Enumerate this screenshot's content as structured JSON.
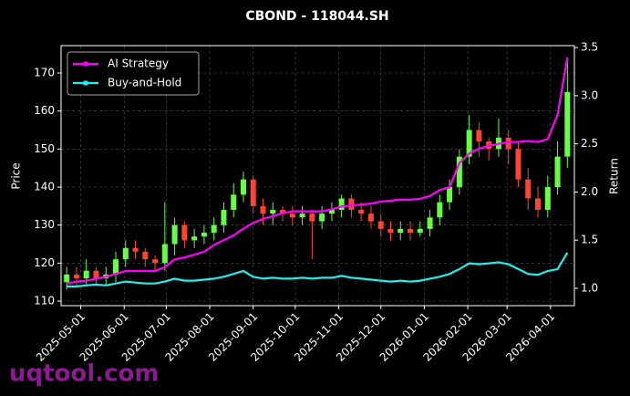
{
  "chart_data": {
    "type": "candlestick",
    "title": "CBOND - 118044.SH",
    "ylabel": "Price",
    "y2label": "Return",
    "watermark": "uqtool.com",
    "x": [
      "2025-04-21",
      "2025-04-28",
      "2025-05-05",
      "2025-05-12",
      "2025-05-19",
      "2025-05-26",
      "2025-06-02",
      "2025-06-09",
      "2025-06-16",
      "2025-06-23",
      "2025-06-30",
      "2025-07-07",
      "2025-07-14",
      "2025-07-21",
      "2025-07-28",
      "2025-08-04",
      "2025-08-11",
      "2025-08-18",
      "2025-08-25",
      "2025-09-01",
      "2025-09-08",
      "2025-09-15",
      "2025-09-22",
      "2025-09-29",
      "2025-10-06",
      "2025-10-13",
      "2025-10-20",
      "2025-10-27",
      "2025-11-03",
      "2025-11-10",
      "2025-11-17",
      "2025-11-24",
      "2025-12-01",
      "2025-12-08",
      "2025-12-15",
      "2025-12-22",
      "2025-12-29",
      "2026-01-05",
      "2026-01-12",
      "2026-01-19",
      "2026-01-26",
      "2026-02-02",
      "2026-02-09",
      "2026-02-16",
      "2026-02-23",
      "2026-03-02",
      "2026-03-09",
      "2026-03-16",
      "2026-03-23",
      "2026-03-30",
      "2026-04-06",
      "2026-04-13"
    ],
    "open": [
      115,
      117,
      116,
      118,
      116,
      117,
      121,
      124,
      123,
      121,
      120,
      125,
      130,
      126,
      127,
      128,
      130,
      134,
      138,
      142,
      135,
      133,
      134,
      133,
      132,
      133,
      131,
      133,
      134,
      137,
      134,
      133,
      131,
      129,
      128,
      129,
      128,
      129,
      132,
      136,
      140,
      148,
      155,
      152,
      150,
      153,
      150,
      142,
      137,
      134,
      140,
      148
    ],
    "high": [
      119,
      119,
      121,
      119,
      119,
      123,
      126,
      126,
      124,
      122,
      136,
      132,
      131,
      129,
      130,
      132,
      136,
      141,
      144,
      143,
      137,
      136,
      135,
      135,
      135,
      134,
      135,
      136,
      138,
      138,
      136,
      135,
      133,
      131,
      131,
      131,
      131,
      134,
      138,
      142,
      150,
      159,
      157,
      153,
      158,
      155,
      152,
      145,
      140,
      143,
      152,
      174
    ],
    "low": [
      113,
      114,
      114,
      114,
      114,
      115,
      119,
      121,
      119,
      118,
      118,
      122,
      124,
      124,
      125,
      126,
      128,
      132,
      136,
      133,
      130,
      130,
      131,
      130,
      130,
      121,
      129,
      131,
      132,
      132,
      131,
      129,
      127,
      126,
      126,
      126,
      127,
      127,
      130,
      134,
      138,
      146,
      148,
      147,
      148,
      146,
      140,
      134,
      132,
      132,
      138,
      145
    ],
    "close": [
      117,
      116,
      118,
      116,
      117,
      121,
      124,
      123,
      121,
      120,
      125,
      130,
      126,
      127,
      128,
      130,
      134,
      138,
      142,
      135,
      133,
      134,
      133,
      132,
      133,
      131,
      133,
      134,
      137,
      134,
      133,
      131,
      129,
      128,
      129,
      128,
      129,
      132,
      136,
      140,
      148,
      155,
      152,
      150,
      153,
      150,
      142,
      137,
      134,
      140,
      148,
      165
    ],
    "up_color": "#66ff44",
    "down_color": "#ff4433",
    "series": [
      {
        "name": "AI Strategy",
        "color": "#ff00ff",
        "axis": "y2",
        "values": [
          1.05,
          1.07,
          1.08,
          1.1,
          1.12,
          1.15,
          1.18,
          1.18,
          1.18,
          1.18,
          1.22,
          1.3,
          1.32,
          1.35,
          1.38,
          1.45,
          1.5,
          1.55,
          1.62,
          1.68,
          1.72,
          1.75,
          1.78,
          1.8,
          1.8,
          1.8,
          1.8,
          1.82,
          1.85,
          1.86,
          1.87,
          1.88,
          1.9,
          1.91,
          1.92,
          1.92,
          1.93,
          1.96,
          2.02,
          2.05,
          2.3,
          2.4,
          2.45,
          2.48,
          2.5,
          2.52,
          2.52,
          2.53,
          2.52,
          2.55,
          2.8,
          3.4
        ]
      },
      {
        "name": "Buy-and-Hold",
        "color": "#22eeee",
        "axis": "y2",
        "values": [
          1.02,
          1.02,
          1.03,
          1.04,
          1.03,
          1.05,
          1.07,
          1.06,
          1.05,
          1.05,
          1.07,
          1.1,
          1.08,
          1.08,
          1.09,
          1.1,
          1.12,
          1.15,
          1.18,
          1.12,
          1.1,
          1.11,
          1.1,
          1.1,
          1.11,
          1.1,
          1.11,
          1.11,
          1.13,
          1.11,
          1.1,
          1.09,
          1.08,
          1.07,
          1.08,
          1.07,
          1.08,
          1.1,
          1.12,
          1.15,
          1.2,
          1.26,
          1.25,
          1.26,
          1.27,
          1.25,
          1.2,
          1.15,
          1.14,
          1.18,
          1.2,
          1.37
        ]
      }
    ],
    "xlim": [
      "2025-04-17",
      "2026-04-18"
    ],
    "xticks": [
      "2025-05-01",
      "2025-06-01",
      "2025-07-01",
      "2025-08-01",
      "2025-09-01",
      "2025-10-01",
      "2025-11-01",
      "2025-12-01",
      "2026-01-01",
      "2026-02-01",
      "2026-03-01",
      "2026-04-01"
    ],
    "ylim": [
      108.8,
      177.2
    ],
    "yticks": [
      110,
      120,
      130,
      140,
      150,
      160,
      170
    ],
    "y2lim": [
      0.82,
      3.52
    ],
    "y2ticks": [
      {
        "value": 1.0,
        "label": "1.0"
      },
      {
        "value": 1.5,
        "label": "1.5"
      },
      {
        "value": 2.0,
        "label": "2.0"
      },
      {
        "value": 2.5,
        "label": "2.5"
      },
      {
        "value": 3.0,
        "label": "3.0"
      },
      {
        "value": 3.5,
        "label": "3.5"
      }
    ],
    "grid": true,
    "legend": "upper left"
  }
}
